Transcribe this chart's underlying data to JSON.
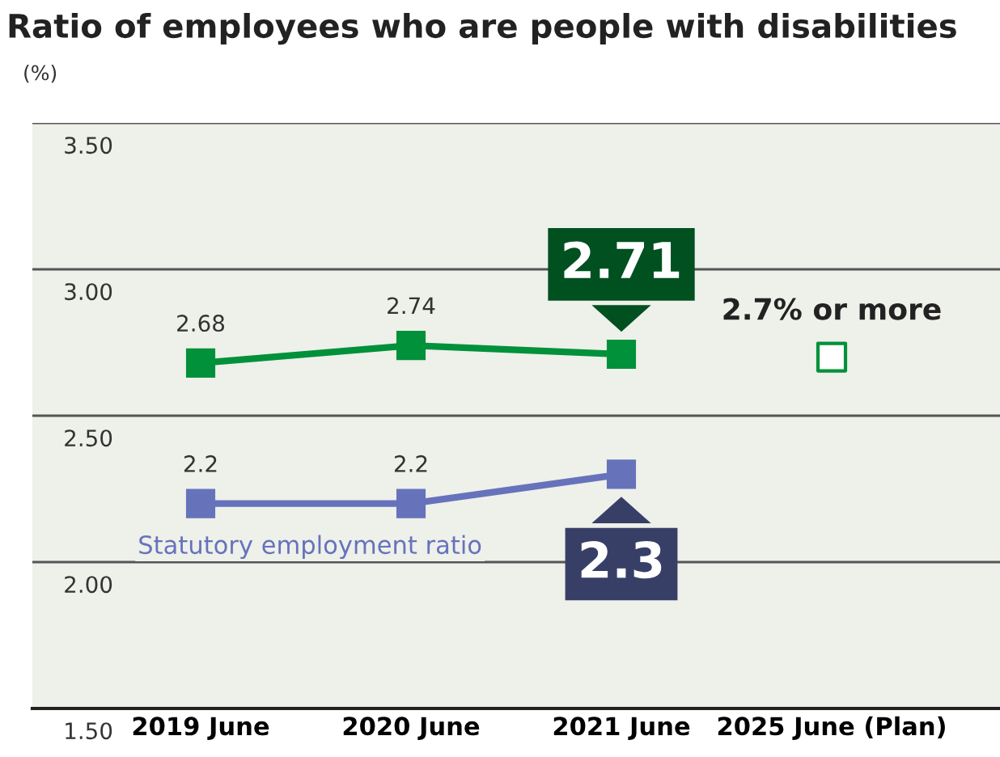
{
  "chart_data": {
    "type": "line",
    "title": "Ratio of employees who are people with disabilities",
    "ylabel": "(%)",
    "categories": [
      "2019 June",
      "2020 June",
      "2021 June",
      "2025 June (Plan)"
    ],
    "series": [
      {
        "color": "#00913a",
        "values": [
          2.68,
          2.74,
          2.71,
          null
        ],
        "value_labels": [
          "2.68",
          "2.74",
          "2.71",
          null
        ]
      },
      {
        "type": "scatter",
        "color": "#00913a",
        "values": [
          null,
          null,
          null,
          2.7
        ],
        "value_labels": [
          null,
          null,
          null,
          "2.7% or more"
        ]
      },
      {
        "name": "Statutory employment ratio",
        "color": "#6673bb",
        "values": [
          2.2,
          2.2,
          2.3,
          null
        ],
        "value_labels": [
          "2.2",
          "2.2",
          "2.3",
          null
        ]
      }
    ],
    "ylim": [
      1.5,
      3.5
    ],
    "yticks": [
      {
        "value": 1.5,
        "label": "1.50"
      },
      {
        "value": 2.0,
        "label": "2.00"
      },
      {
        "value": 2.5,
        "label": "2.50"
      },
      {
        "value": 3.0,
        "label": "3.00"
      },
      {
        "value": 3.5,
        "label": "3.50"
      }
    ],
    "grid": "y",
    "marker": "square",
    "line_style": "solid",
    "legend": false
  }
}
